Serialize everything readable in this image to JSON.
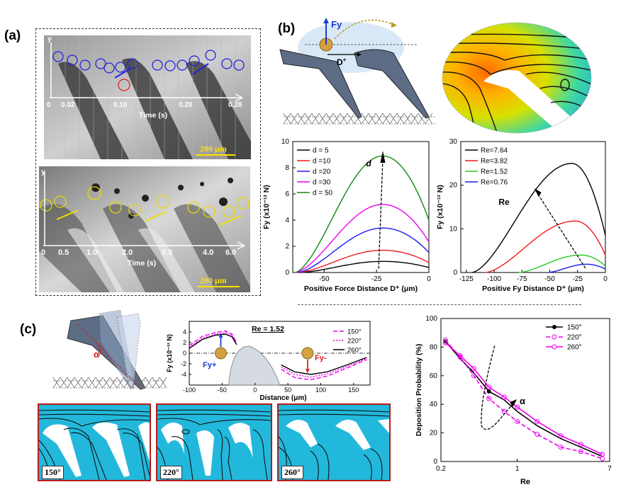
{
  "panels": {
    "a": {
      "label": "(a)",
      "top_image": {
        "y_label": "y",
        "time_ticks": [
          "0",
          "0.02",
          "0.10",
          "0.20",
          "0.28"
        ],
        "time_axis_label": "Time (s)",
        "scale_bar": "200 μm"
      },
      "bottom_image": {
        "y_label": "y",
        "time_ticks": [
          "0",
          "0.5",
          "1.0",
          "2.0",
          "3.0",
          "4.0",
          "6.0"
        ],
        "time_axis_label": "Time (s)",
        "scale_bar": "200 μm"
      }
    },
    "b": {
      "label": "(b)",
      "schematic": {
        "force_label": "Fy",
        "distance_label": "D",
        "distance_superscript": "+"
      }
    },
    "c": {
      "label": "(c)",
      "schematic": {
        "angle_label": "α"
      },
      "inset": {
        "fy_plus": "Fy+",
        "fy_minus": "Fy-"
      },
      "flow_panels": [
        "150°",
        "220°",
        "260°"
      ]
    }
  },
  "chart_data": [
    {
      "id": "b-force-vs-distance",
      "type": "line",
      "xlabel": "Positive Force Distance D⁺ (μm)",
      "ylabel": "Fy (x10⁻¹² N)",
      "xlim": [
        -65,
        0
      ],
      "ylim": [
        0,
        10
      ],
      "xticks": [
        -50,
        -25,
        0
      ],
      "yticks": [
        0,
        2,
        4,
        6,
        8,
        10
      ],
      "arrow_label": "d",
      "legend_position": "top-left",
      "series": [
        {
          "name": "d = 5",
          "color": "#000000",
          "peak_x": -22,
          "peak_y": 0.85,
          "x0": -62
        },
        {
          "name": "d =10",
          "color": "#ee1c1c",
          "peak_x": -22,
          "peak_y": 1.7,
          "x0": -63
        },
        {
          "name": "d =20",
          "color": "#1c1cee",
          "peak_x": -22,
          "peak_y": 3.4,
          "x0": -63
        },
        {
          "name": "d =30",
          "color": "#ee00ee",
          "peak_x": -22,
          "peak_y": 5.2,
          "x0": -64
        },
        {
          "name": "d = 50",
          "color": "#118811",
          "peak_x": -22,
          "peak_y": 8.9,
          "x0": -64
        }
      ]
    },
    {
      "id": "b-force-vs-re",
      "type": "line",
      "xlabel": "Positive Fy Distance D⁺ (μm)",
      "ylabel": "Fy (x10⁻¹² N)",
      "xlim": [
        -130,
        0
      ],
      "ylim": [
        0,
        30
      ],
      "xticks": [
        -125,
        -100,
        -75,
        -50,
        -25,
        0
      ],
      "yticks": [
        0,
        10,
        20,
        30
      ],
      "arrow_label": "Re",
      "legend_position": "top-left",
      "series": [
        {
          "name": "Re=7.64",
          "color": "#000000",
          "x0": -120,
          "peak_x": -30,
          "peak_y": 25,
          "end_y": 8.5
        },
        {
          "name": "Re=3.82",
          "color": "#ee1c1c",
          "x0": -108,
          "peak_x": -27,
          "peak_y": 11.8,
          "end_y": 4
        },
        {
          "name": "Re=1.52",
          "color": "#22cc22",
          "x0": -78,
          "peak_x": -22,
          "peak_y": 4,
          "end_y": 1.5
        },
        {
          "name": "Re=0.76",
          "color": "#1c1cee",
          "x0": -52,
          "peak_x": -17,
          "peak_y": 1.9,
          "end_y": 0.8
        }
      ]
    },
    {
      "id": "c-fy-vs-distance",
      "type": "line",
      "title": "Re = 1.52",
      "xlabel": "Distance (μm)",
      "ylabel": "Fy (x10⁻¹² N)",
      "xlim": [
        -100,
        175
      ],
      "ylim": [
        -6,
        6
      ],
      "xticks": [
        -100,
        -50,
        0,
        50,
        100,
        150
      ],
      "yticks": [
        -4,
        -2,
        0,
        2,
        4
      ],
      "legend_position": "top-right",
      "series": [
        {
          "name": "150°",
          "color": "#ee00ee",
          "dash": "dash",
          "pts": [
            [
              -100,
              1.4
            ],
            [
              -80,
              3.2
            ],
            [
              -60,
              3.9
            ],
            [
              -45,
              4.2
            ],
            [
              -35,
              3.6
            ],
            [
              -28,
              2.0
            ],
            [
              40,
              -3.0
            ],
            [
              60,
              -4.6
            ],
            [
              85,
              -5.0
            ],
            [
              110,
              -4.3
            ],
            [
              140,
              -2.8
            ],
            [
              170,
              -1.2
            ]
          ]
        },
        {
          "name": "220°",
          "color": "#ee00ee",
          "dash": "dot",
          "pts": [
            [
              -100,
              1.1
            ],
            [
              -80,
              2.8
            ],
            [
              -60,
              3.6
            ],
            [
              -45,
              3.9
            ],
            [
              -35,
              3.4
            ],
            [
              -28,
              1.8
            ],
            [
              40,
              -2.6
            ],
            [
              60,
              -4.0
            ],
            [
              85,
              -4.5
            ],
            [
              110,
              -3.9
            ],
            [
              140,
              -2.5
            ],
            [
              170,
              -1.0
            ]
          ]
        },
        {
          "name": "260°",
          "color": "#000000",
          "dash": "solid",
          "pts": [
            [
              -100,
              0.9
            ],
            [
              -80,
              2.6
            ],
            [
              -60,
              3.4
            ],
            [
              -45,
              3.6
            ],
            [
              -35,
              3.1
            ],
            [
              -28,
              1.6
            ],
            [
              40,
              -2.2
            ],
            [
              60,
              -3.5
            ],
            [
              85,
              -4.0
            ],
            [
              110,
              -3.5
            ],
            [
              140,
              -2.2
            ],
            [
              170,
              -0.8
            ]
          ]
        }
      ]
    },
    {
      "id": "c-deposition",
      "type": "line",
      "xlabel": "Re",
      "ylabel": "Deposition Probability (%)",
      "xscale": "log",
      "xlim": [
        0.2,
        7
      ],
      "ylim": [
        0,
        100
      ],
      "xticks": [
        "0.2",
        "1",
        "7"
      ],
      "yticks": [
        0,
        20,
        40,
        60,
        80,
        100
      ],
      "arrow_label": "α",
      "legend_position": "top-right",
      "series": [
        {
          "name": "150°",
          "color": "#000000",
          "marker": "filled-circle",
          "dash": "solid",
          "pts": [
            [
              0.22,
              84
            ],
            [
              0.3,
              72
            ],
            [
              0.4,
              62
            ],
            [
              0.55,
              49
            ],
            [
              0.76,
              43
            ],
            [
              1.0,
              35
            ],
            [
              1.52,
              25
            ],
            [
              2.5,
              16
            ],
            [
              3.82,
              10
            ],
            [
              6.0,
              3.5
            ]
          ]
        },
        {
          "name": "220°",
          "color": "#ee00ee",
          "marker": "open-circle",
          "dash": "dash",
          "pts": [
            [
              0.22,
              85
            ],
            [
              0.3,
              73
            ],
            [
              0.4,
              60
            ],
            [
              0.55,
              44
            ],
            [
              0.76,
              35
            ],
            [
              1.0,
              28
            ],
            [
              1.52,
              19
            ],
            [
              2.5,
              10
            ],
            [
              3.82,
              7
            ],
            [
              6.0,
              2
            ]
          ]
        },
        {
          "name": "260°",
          "color": "#ee00ee",
          "marker": "open-circle",
          "dash": "solid",
          "pts": [
            [
              0.22,
              83
            ],
            [
              0.3,
              74
            ],
            [
              0.4,
              65
            ],
            [
              0.55,
              52
            ],
            [
              0.76,
              45
            ],
            [
              1.0,
              38
            ],
            [
              1.52,
              28
            ],
            [
              2.5,
              18
            ],
            [
              3.82,
              12
            ],
            [
              6.0,
              5
            ]
          ]
        }
      ]
    }
  ]
}
